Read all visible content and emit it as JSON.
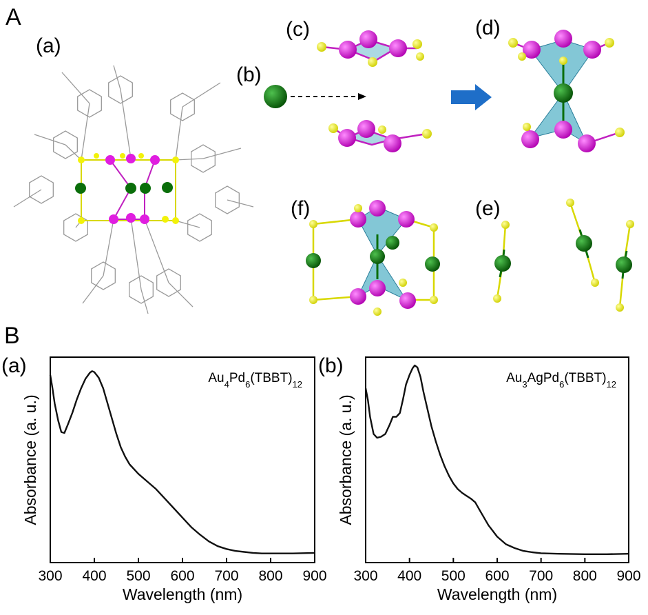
{
  "panel_A": {
    "label": "A",
    "sub_a": "(a)",
    "sub_b": "(b)",
    "sub_c": "(c)",
    "sub_d": "(d)",
    "sub_e": "(e)",
    "sub_f": "(f)",
    "colors": {
      "au_pd": "#e01ee0",
      "s": "#f2f20a",
      "metal": "#0a6e0a",
      "polyhedron": "#5ab4c8",
      "arrow": "#1e6ec8"
    }
  },
  "panel_B": {
    "label": "B"
  },
  "chart_data": [
    {
      "type": "line",
      "panel": "(a)",
      "title": "",
      "legend_base": "Au",
      "legend_parts": [
        {
          "t": "Au",
          "sub": false
        },
        {
          "t": "4",
          "sub": true
        },
        {
          "t": "Pd",
          "sub": false
        },
        {
          "t": "6",
          "sub": true
        },
        {
          "t": "(TBBT)",
          "sub": false
        },
        {
          "t": "12",
          "sub": true
        }
      ],
      "xlabel": "Wavelength (nm)",
      "ylabel": "Absorbance (a. u.)",
      "xlim": [
        300,
        900
      ],
      "ylim": [
        0,
        1
      ],
      "xticks": [
        300,
        400,
        500,
        600,
        700,
        800,
        900
      ],
      "x": [
        300,
        305,
        310,
        318,
        325,
        332,
        340,
        350,
        360,
        370,
        380,
        390,
        395,
        400,
        410,
        420,
        430,
        440,
        450,
        460,
        470,
        480,
        500,
        520,
        540,
        560,
        580,
        600,
        620,
        640,
        660,
        680,
        700,
        720,
        740,
        760,
        780,
        800,
        850,
        900
      ],
      "y": [
        0.95,
        0.88,
        0.8,
        0.71,
        0.65,
        0.645,
        0.69,
        0.75,
        0.82,
        0.88,
        0.93,
        0.962,
        0.97,
        0.965,
        0.935,
        0.88,
        0.8,
        0.72,
        0.64,
        0.57,
        0.52,
        0.48,
        0.43,
        0.39,
        0.35,
        0.3,
        0.25,
        0.2,
        0.15,
        0.11,
        0.075,
        0.05,
        0.035,
        0.025,
        0.02,
        0.015,
        0.012,
        0.012,
        0.012,
        0.015
      ]
    },
    {
      "type": "line",
      "panel": "(b)",
      "title": "",
      "legend_parts": [
        {
          "t": "Au",
          "sub": false
        },
        {
          "t": "3",
          "sub": true
        },
        {
          "t": "AgPd",
          "sub": false
        },
        {
          "t": "6",
          "sub": true
        },
        {
          "t": "(TBBT)",
          "sub": false
        },
        {
          "t": "12",
          "sub": true
        }
      ],
      "xlabel": "Wavelength (nm)",
      "ylabel": "Absorbance (a. u.)",
      "xlim": [
        300,
        900
      ],
      "ylim": [
        0,
        1
      ],
      "xticks": [
        300,
        400,
        500,
        600,
        700,
        800,
        900
      ],
      "x": [
        300,
        305,
        310,
        318,
        326,
        335,
        345,
        355,
        362,
        370,
        378,
        385,
        392,
        400,
        407,
        412,
        418,
        425,
        432,
        440,
        450,
        460,
        470,
        480,
        490,
        500,
        510,
        520,
        530,
        540,
        550,
        560,
        570,
        580,
        600,
        620,
        640,
        660,
        680,
        700,
        740,
        800,
        850,
        900
      ],
      "y": [
        0.88,
        0.82,
        0.73,
        0.64,
        0.62,
        0.625,
        0.64,
        0.69,
        0.73,
        0.73,
        0.75,
        0.82,
        0.9,
        0.95,
        0.985,
        1.0,
        0.99,
        0.94,
        0.86,
        0.78,
        0.68,
        0.6,
        0.53,
        0.47,
        0.42,
        0.38,
        0.35,
        0.33,
        0.315,
        0.3,
        0.28,
        0.24,
        0.2,
        0.16,
        0.1,
        0.06,
        0.04,
        0.025,
        0.018,
        0.013,
        0.01,
        0.008,
        0.008,
        0.01
      ]
    }
  ]
}
